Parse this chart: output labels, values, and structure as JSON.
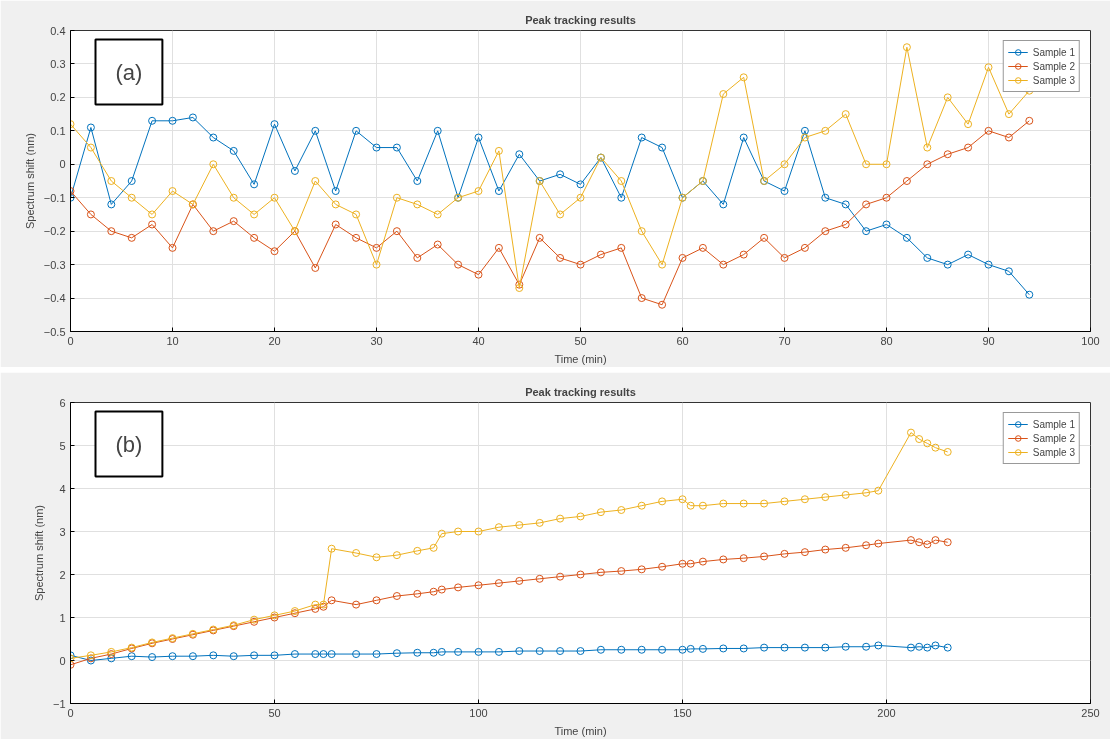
{
  "chart_data": [
    {
      "type": "line",
      "title": "Peak tracking results",
      "xlabel": "Time (min)",
      "ylabel": "Spectrum shift (nm)",
      "annotations": [
        "(a)"
      ],
      "x": [
        0,
        2,
        4,
        6,
        8,
        10,
        12,
        14,
        16,
        18,
        20,
        22,
        24,
        26,
        28,
        30,
        32,
        34,
        36,
        38,
        40,
        42,
        44,
        46,
        48,
        50,
        52,
        54,
        56,
        58,
        60,
        62,
        64,
        66,
        68,
        70,
        72,
        74,
        76,
        78,
        80,
        82,
        84,
        86,
        88,
        90,
        92,
        94
      ],
      "series": [
        {
          "name": "Sample 1",
          "color": "#0072bd",
          "values": [
            -0.1,
            0.11,
            -0.12,
            -0.05,
            0.13,
            0.13,
            0.14,
            0.08,
            0.04,
            -0.06,
            0.12,
            -0.02,
            0.1,
            -0.08,
            0.1,
            0.05,
            0.05,
            -0.05,
            0.1,
            -0.1,
            0.08,
            -0.08,
            0.03,
            -0.05,
            -0.03,
            -0.06,
            0.02,
            -0.1,
            0.08,
            0.05,
            -0.1,
            -0.05,
            -0.12,
            0.08,
            -0.05,
            -0.08,
            0.1,
            -0.1,
            -0.12,
            -0.2,
            -0.18,
            -0.22,
            -0.28,
            -0.3,
            -0.27,
            -0.3,
            -0.32,
            -0.39
          ]
        },
        {
          "name": "Sample 2",
          "color": "#d95319",
          "values": [
            -0.08,
            -0.15,
            -0.2,
            -0.22,
            -0.18,
            -0.25,
            -0.12,
            -0.2,
            -0.17,
            -0.22,
            -0.26,
            -0.2,
            -0.31,
            -0.18,
            -0.22,
            -0.25,
            -0.2,
            -0.28,
            -0.24,
            -0.3,
            -0.33,
            -0.25,
            -0.36,
            -0.22,
            -0.28,
            -0.3,
            -0.27,
            -0.25,
            -0.4,
            -0.42,
            -0.28,
            -0.25,
            -0.3,
            -0.27,
            -0.22,
            -0.28,
            -0.25,
            -0.2,
            -0.18,
            -0.12,
            -0.1,
            -0.05,
            0.0,
            0.03,
            0.05,
            0.1,
            0.08,
            0.13
          ]
        },
        {
          "name": "Sample 3",
          "color": "#edb120",
          "values": [
            0.12,
            0.05,
            -0.05,
            -0.1,
            -0.15,
            -0.08,
            -0.12,
            0.0,
            -0.1,
            -0.15,
            -0.1,
            -0.2,
            -0.05,
            -0.12,
            -0.15,
            -0.3,
            -0.1,
            -0.12,
            -0.15,
            -0.1,
            -0.08,
            0.04,
            -0.37,
            -0.05,
            -0.15,
            -0.1,
            0.02,
            -0.05,
            -0.2,
            -0.3,
            -0.1,
            -0.05,
            0.21,
            0.26,
            -0.05,
            0.0,
            0.08,
            0.1,
            0.15,
            0.0,
            0.0,
            0.35,
            0.05,
            0.2,
            0.12,
            0.29,
            0.15,
            0.22
          ]
        }
      ],
      "xlim": [
        0,
        100
      ],
      "xticks": [
        0,
        10,
        20,
        30,
        40,
        50,
        60,
        70,
        80,
        90,
        100
      ],
      "ylim": [
        -0.5,
        0.4
      ],
      "yticks": [
        -0.5,
        -0.4,
        -0.3,
        -0.2,
        -0.1,
        0,
        0.1,
        0.2,
        0.3,
        0.4
      ],
      "grid": true,
      "legend": "top right",
      "marker": "circle",
      "line_style": "solid"
    },
    {
      "type": "line",
      "title": "Peak tracking results",
      "xlabel": "Time (min)",
      "ylabel": "Spectrum shift (nm)",
      "annotations": [
        "(b)"
      ],
      "x": [
        0,
        5,
        10,
        15,
        20,
        25,
        30,
        35,
        40,
        45,
        50,
        55,
        60,
        62,
        64,
        70,
        75,
        80,
        85,
        89,
        91,
        95,
        100,
        105,
        110,
        115,
        120,
        125,
        130,
        135,
        140,
        145,
        150,
        152,
        155,
        160,
        165,
        170,
        175,
        180,
        185,
        190,
        195,
        198,
        206,
        208,
        210,
        212,
        215
      ],
      "series": [
        {
          "name": "Sample 1",
          "color": "#0072bd",
          "values": [
            0.12,
            0.0,
            0.05,
            0.1,
            0.08,
            0.1,
            0.1,
            0.12,
            0.1,
            0.12,
            0.12,
            0.15,
            0.15,
            0.15,
            0.15,
            0.15,
            0.15,
            0.17,
            0.18,
            0.18,
            0.2,
            0.2,
            0.2,
            0.2,
            0.22,
            0.22,
            0.22,
            0.22,
            0.25,
            0.25,
            0.25,
            0.25,
            0.25,
            0.27,
            0.27,
            0.28,
            0.28,
            0.3,
            0.3,
            0.3,
            0.3,
            0.32,
            0.32,
            0.35,
            0.3,
            0.32,
            0.3,
            0.35,
            0.3
          ]
        },
        {
          "name": "Sample 2",
          "color": "#d95319",
          "values": [
            -0.1,
            0.05,
            0.15,
            0.28,
            0.4,
            0.5,
            0.6,
            0.7,
            0.8,
            0.9,
            1.0,
            1.1,
            1.2,
            1.25,
            1.4,
            1.3,
            1.4,
            1.5,
            1.55,
            1.6,
            1.65,
            1.7,
            1.75,
            1.8,
            1.85,
            1.9,
            1.95,
            2.0,
            2.05,
            2.08,
            2.12,
            2.18,
            2.25,
            2.25,
            2.3,
            2.35,
            2.38,
            2.42,
            2.48,
            2.52,
            2.58,
            2.62,
            2.68,
            2.72,
            2.8,
            2.75,
            2.7,
            2.8,
            2.75
          ]
        },
        {
          "name": "Sample 3",
          "color": "#edb120",
          "values": [
            0.05,
            0.12,
            0.2,
            0.3,
            0.42,
            0.52,
            0.62,
            0.72,
            0.82,
            0.95,
            1.05,
            1.15,
            1.3,
            1.3,
            2.6,
            2.5,
            2.4,
            2.45,
            2.55,
            2.62,
            2.95,
            3.0,
            3.0,
            3.1,
            3.15,
            3.2,
            3.3,
            3.35,
            3.45,
            3.5,
            3.6,
            3.7,
            3.75,
            3.6,
            3.6,
            3.65,
            3.65,
            3.65,
            3.7,
            3.75,
            3.8,
            3.85,
            3.9,
            3.95,
            5.3,
            5.15,
            5.05,
            4.95,
            4.85
          ]
        }
      ],
      "xlim": [
        0,
        250
      ],
      "xticks": [
        0,
        50,
        100,
        150,
        200,
        250
      ],
      "ylim": [
        -1,
        6
      ],
      "yticks": [
        -1,
        0,
        1,
        2,
        3,
        4,
        5,
        6
      ],
      "grid": true,
      "legend": "top right",
      "marker": "circle",
      "line_style": "solid"
    }
  ]
}
